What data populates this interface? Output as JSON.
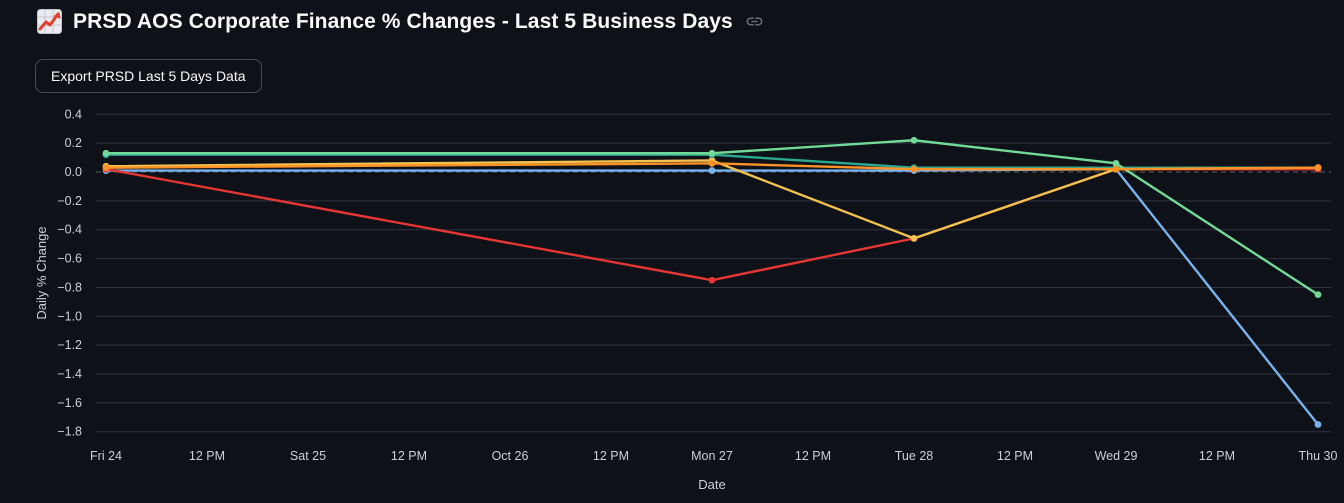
{
  "header": {
    "title": "PRSD AOS Corporate Finance % Changes - Last 5 Business Days",
    "emoji_icon": "chart-increasing-emoji",
    "link_icon": "link-icon"
  },
  "toolbar": {
    "export_button_label": "Export PRSD Last 5 Days Data"
  },
  "colors": {
    "background": "#0e1117",
    "title_text": "#fafafa",
    "axis_text": "#ccd0d7",
    "gridline": "#2e3340",
    "zero_line": "#9aa0a8",
    "button_border": "rgba(250,250,250,0.25)",
    "link_icon": "#878d96"
  },
  "chart_data": {
    "type": "line",
    "title": "",
    "xlabel": "Date",
    "ylabel": "Daily % Change",
    "legend": "none",
    "grid": "horizontal",
    "zero_line_dashed": true,
    "markers": true,
    "y_ticks": [
      0.4,
      0.2,
      0.0,
      -0.2,
      -0.4,
      -0.6,
      -0.8,
      -1.0,
      -1.2,
      -1.4,
      -1.6,
      -1.8
    ],
    "y_tick_labels": [
      "0.4",
      "0.2",
      "0.0",
      "−0.2",
      "−0.4",
      "−0.6",
      "−0.8",
      "−1.0",
      "−1.2",
      "−1.4",
      "−1.6",
      "−1.8"
    ],
    "ylim": [
      -1.9,
      0.45
    ],
    "x_tick_labels": [
      "Fri 24",
      "12 PM",
      "Sat 25",
      "12 PM",
      "Oct 26",
      "12 PM",
      "Mon 27",
      "12 PM",
      "Tue 28",
      "12 PM",
      "Wed 29",
      "12 PM",
      "Thu 30"
    ],
    "x_tick_day_positions": [
      0,
      0.5,
      1,
      1.5,
      2,
      2.5,
      3,
      3.5,
      4,
      4.5,
      5,
      5.5,
      6
    ],
    "categories": [
      "Fri 24",
      "Mon 27",
      "Tue 28",
      "Wed 29",
      "Thu 30"
    ],
    "x_day_values": [
      0,
      3,
      4,
      5,
      6
    ],
    "series": [
      {
        "name": "series-blue",
        "color": "#79b3ed",
        "values": [
          0.01,
          0.01,
          0.01,
          0.02,
          -1.75
        ]
      },
      {
        "name": "series-red",
        "color": "#e63535",
        "values": [
          0.02,
          -0.75,
          -0.46,
          0.02,
          0.02
        ]
      },
      {
        "name": "series-yellow",
        "color": "#f2c14e",
        "values": [
          0.04,
          0.08,
          -0.46,
          0.02,
          0.03
        ]
      },
      {
        "name": "series-teal",
        "color": "#2ba68f",
        "values": [
          0.12,
          0.12,
          0.03,
          0.03,
          0.03
        ]
      },
      {
        "name": "series-green",
        "color": "#72d998",
        "values": [
          0.13,
          0.13,
          0.22,
          0.06,
          -0.85
        ]
      },
      {
        "name": "series-orange",
        "color": "#fd9227",
        "values": [
          0.03,
          0.06,
          0.02,
          0.02,
          0.03
        ]
      }
    ]
  }
}
